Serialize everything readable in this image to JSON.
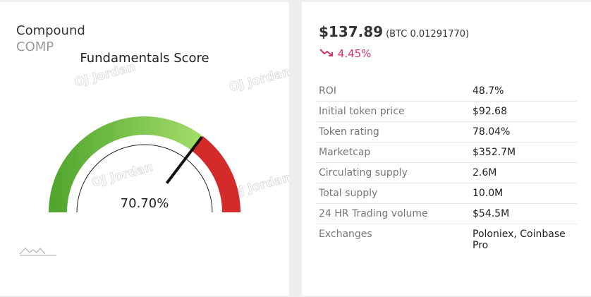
{
  "left": {
    "name": "Compound",
    "symbol": "COMP",
    "watermark": "OJ Jordan",
    "gauge": {
      "title": "Fundamentals Score",
      "value": 70.7,
      "value_label": "70.70%",
      "range": [
        0,
        100
      ]
    }
  },
  "right": {
    "price": "$137.89",
    "btc_price": "(BTC 0.01291770)",
    "change": "4.45%",
    "rows": [
      [
        "ROI",
        "48.7%"
      ],
      [
        "Initial token price",
        "$92.68"
      ],
      [
        "Token rating",
        "78.04%"
      ],
      [
        "Marketcap",
        "$352.7M"
      ],
      [
        "Circulating supply",
        "2.6M"
      ],
      [
        "Total supply",
        "10.0M"
      ],
      [
        "24 HR Trading volume",
        "$54.5M"
      ],
      [
        "Exchanges",
        "Poloniex, Coinbase Pro"
      ]
    ]
  }
}
